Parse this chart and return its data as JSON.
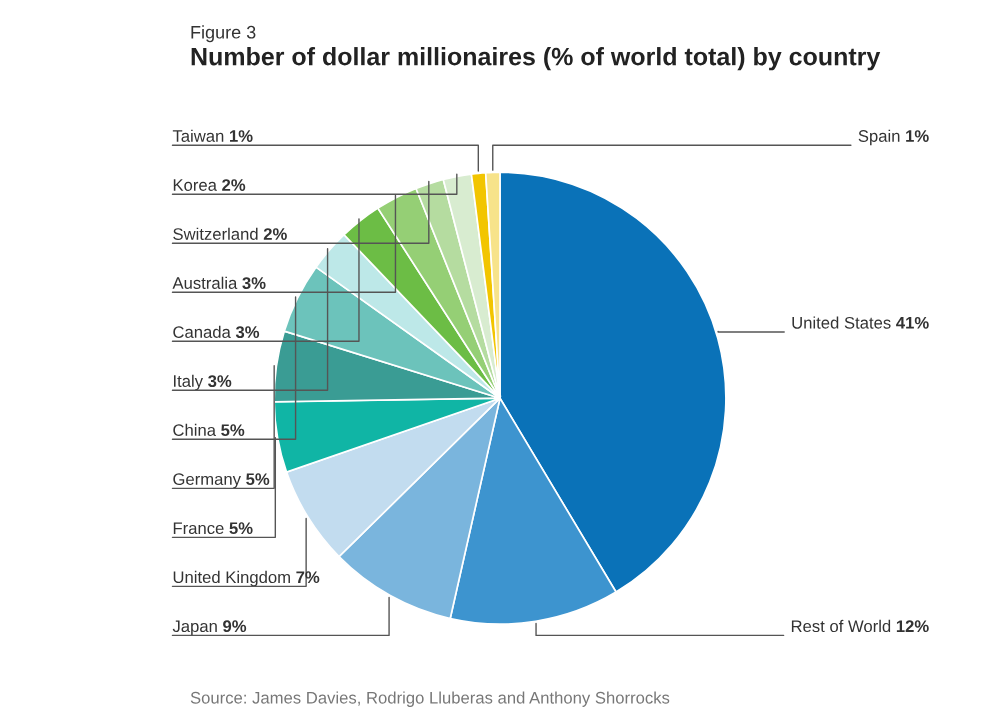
{
  "chart_data": {
    "type": "pie",
    "title": "Number of dollar millionaires (% of world total) by country",
    "subtitle": "Figure 3",
    "categories": [
      "United States",
      "Rest of World",
      "Japan",
      "United Kingdom",
      "France",
      "Germany",
      "China",
      "Italy",
      "Canada",
      "Australia",
      "Switzerland",
      "Korea",
      "Taiwan",
      "Spain"
    ],
    "values": [
      41,
      12,
      9,
      7,
      5,
      5,
      5,
      3,
      3,
      3,
      2,
      2,
      1,
      1
    ],
    "colors": [
      "#0a72b8",
      "#3d94cf",
      "#7ab5dd",
      "#c2dcef",
      "#10b5a5",
      "#3a9c94",
      "#6cc3bb",
      "#bde8e8",
      "#6cbd45",
      "#95cf75",
      "#b5dca0",
      "#d8ecd0",
      "#f2c500",
      "#f7e38a"
    ],
    "value_labels": [
      "41%",
      "12%",
      "9%",
      "7%",
      "5%",
      "5%",
      "5%",
      "3%",
      "3%",
      "3%",
      "2%",
      "2%",
      "1%",
      "1%"
    ],
    "annotations": [
      "Source: James Davies, Rodrigo Lluberas and Anthony Shorrocks"
    ]
  }
}
